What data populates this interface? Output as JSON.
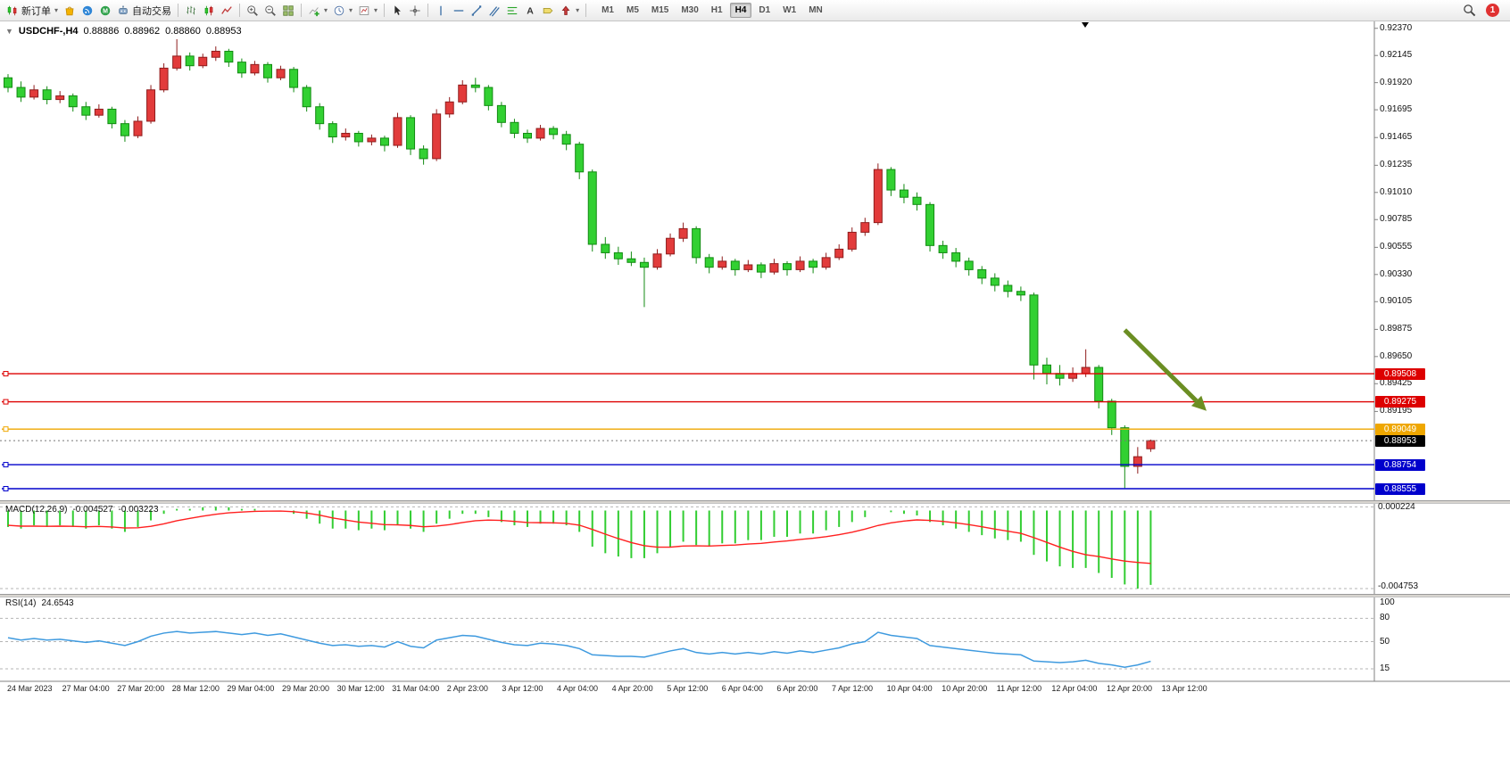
{
  "toolbar": {
    "notification_count": "1",
    "active_timeframe": "H4",
    "timeframes": [
      "M1",
      "M5",
      "M15",
      "M30",
      "H1",
      "H4",
      "D1",
      "W1",
      "MN"
    ],
    "buttons": [
      {
        "name": "new-order-button",
        "label": "新订单",
        "icon": "new-order-icon",
        "caret": true
      },
      {
        "name": "market-button",
        "icon": "market-icon"
      },
      {
        "name": "signals-button",
        "icon": "signals-icon"
      },
      {
        "name": "community-button",
        "icon": "community-icon"
      },
      {
        "name": "autotrade-button",
        "label": "自动交易",
        "icon": "autotrade-icon"
      },
      {
        "sep": true
      },
      {
        "name": "bar-chart-button",
        "icon": "bar-chart-icon"
      },
      {
        "name": "candle-chart-button",
        "icon": "candle-chart-icon"
      },
      {
        "name": "line-chart-button",
        "icon": "line-chart-icon"
      },
      {
        "sep": true
      },
      {
        "name": "zoom-in-button",
        "icon": "zoom-in-icon"
      },
      {
        "name": "zoom-out-button",
        "icon": "zoom-out-icon"
      },
      {
        "name": "tile-windows-button",
        "icon": "tile-windows-icon"
      },
      {
        "sep": true
      },
      {
        "name": "indicators-button",
        "icon": "indicators-icon",
        "caret": true
      },
      {
        "name": "periods-button",
        "icon": "clock-icon",
        "caret": true
      },
      {
        "name": "templates-button",
        "icon": "template-icon",
        "caret": true
      },
      {
        "sep": true
      },
      {
        "name": "cursor-button",
        "icon": "cursor-icon"
      },
      {
        "name": "crosshair-button",
        "icon": "crosshair-icon"
      },
      {
        "sep": true
      },
      {
        "name": "vertical-line-button",
        "icon": "vertical-line-icon"
      },
      {
        "name": "horizontal-line-button",
        "icon": "horizontal-line-icon"
      },
      {
        "name": "trendline-button",
        "icon": "trendline-icon"
      },
      {
        "name": "channel-button",
        "icon": "channel-icon"
      },
      {
        "name": "fibonacci-button",
        "icon": "fibonacci-icon"
      },
      {
        "name": "text-button",
        "icon": "text-icon"
      },
      {
        "name": "label-button",
        "icon": "label-icon"
      },
      {
        "name": "arrows-button",
        "icon": "arrows-icon",
        "caret": true
      },
      {
        "sep": true
      }
    ]
  },
  "quote": {
    "symbol_period": "USDCHF-,H4",
    "open": "0.88886",
    "high": "0.88962",
    "low": "0.88860",
    "close": "0.88953"
  },
  "chart_data": [
    {
      "type": "candlestick",
      "title": "USDCHF-,H4",
      "up_color": "#e23b3b",
      "up_border": "#8f1d1d",
      "down_color": "#32d032",
      "down_border": "#128a12",
      "ylim": [
        0.8843,
        0.9242
      ],
      "y_axis_labels": [
        "0.92370",
        "0.92145",
        "0.91920",
        "0.91695",
        "0.91465",
        "0.91235",
        "0.91010",
        "0.90785",
        "0.90555",
        "0.90330",
        "0.90105",
        "0.89875",
        "0.89650",
        "0.89425",
        "0.89195"
      ],
      "hlines": [
        {
          "label": "0.89508",
          "value": 0.89508,
          "color": "#dd0000"
        },
        {
          "label": "0.89275",
          "value": 0.89275,
          "color": "#dd0000"
        },
        {
          "label": "0.89049",
          "value": 0.89049,
          "color": "#efa700"
        },
        {
          "label": "0.88754",
          "value": 0.88754,
          "color": "#0000cc"
        },
        {
          "label": "0.88555",
          "value": 0.88555,
          "color": "#0000cc"
        }
      ],
      "current_price": {
        "label": "0.88953",
        "value": 0.88953,
        "color": "#000000"
      },
      "arrow": {
        "x1_bar": 86,
        "price1": 0.8987,
        "x2_bar": 92.3,
        "price2": 0.892,
        "color": "#6b8e23"
      },
      "x_labels": [
        "24 Mar 2023",
        "27 Mar 04:00",
        "27 Mar 20:00",
        "28 Mar 12:00",
        "29 Mar 04:00",
        "29 Mar 20:00",
        "30 Mar 12:00",
        "31 Mar 04:00",
        "2 Apr 23:00",
        "3 Apr 12:00",
        "4 Apr 04:00",
        "4 Apr 20:00",
        "5 Apr 12:00",
        "6 Apr 04:00",
        "6 Apr 20:00",
        "7 Apr 12:00",
        "10 Apr 04:00",
        "10 Apr 20:00",
        "11 Apr 12:00",
        "12 Apr 04:00",
        "12 Apr 20:00",
        "13 Apr 12:00"
      ],
      "ohlc": [
        [
          0.9196,
          0.9199,
          0.9184,
          0.9188
        ],
        [
          0.9188,
          0.9193,
          0.9176,
          0.918
        ],
        [
          0.918,
          0.919,
          0.9178,
          0.9186
        ],
        [
          0.9186,
          0.9189,
          0.9174,
          0.9178
        ],
        [
          0.9178,
          0.9185,
          0.9175,
          0.9181
        ],
        [
          0.9181,
          0.9183,
          0.9168,
          0.9172
        ],
        [
          0.9172,
          0.9176,
          0.9161,
          0.9165
        ],
        [
          0.9165,
          0.9174,
          0.9163,
          0.917
        ],
        [
          0.917,
          0.9172,
          0.9154,
          0.9158
        ],
        [
          0.9158,
          0.9161,
          0.9143,
          0.9148
        ],
        [
          0.9148,
          0.9164,
          0.9146,
          0.916
        ],
        [
          0.916,
          0.919,
          0.9158,
          0.9186
        ],
        [
          0.9186,
          0.9208,
          0.9184,
          0.9204
        ],
        [
          0.9204,
          0.9228,
          0.9202,
          0.9214
        ],
        [
          0.9214,
          0.9217,
          0.9202,
          0.9206
        ],
        [
          0.9206,
          0.9216,
          0.9204,
          0.9213
        ],
        [
          0.9213,
          0.9222,
          0.921,
          0.9218
        ],
        [
          0.9218,
          0.922,
          0.9205,
          0.9209
        ],
        [
          0.9209,
          0.9212,
          0.9196,
          0.92
        ],
        [
          0.92,
          0.921,
          0.9198,
          0.9207
        ],
        [
          0.9207,
          0.9209,
          0.9192,
          0.9196
        ],
        [
          0.9196,
          0.9206,
          0.9194,
          0.9203
        ],
        [
          0.9203,
          0.9205,
          0.9184,
          0.9188
        ],
        [
          0.9188,
          0.919,
          0.9168,
          0.9172
        ],
        [
          0.9172,
          0.9175,
          0.9153,
          0.9158
        ],
        [
          0.9158,
          0.916,
          0.9142,
          0.9147
        ],
        [
          0.9147,
          0.9154,
          0.9144,
          0.915
        ],
        [
          0.915,
          0.9152,
          0.9139,
          0.9143
        ],
        [
          0.9143,
          0.9149,
          0.914,
          0.9146
        ],
        [
          0.9146,
          0.9148,
          0.9135,
          0.914
        ],
        [
          0.914,
          0.9167,
          0.9138,
          0.9163
        ],
        [
          0.9163,
          0.9165,
          0.9132,
          0.9137
        ],
        [
          0.9137,
          0.914,
          0.9124,
          0.9129
        ],
        [
          0.9129,
          0.917,
          0.9127,
          0.9166
        ],
        [
          0.9166,
          0.918,
          0.9163,
          0.9176
        ],
        [
          0.9176,
          0.9194,
          0.9174,
          0.919
        ],
        [
          0.919,
          0.9196,
          0.9184,
          0.9188
        ],
        [
          0.9188,
          0.919,
          0.9169,
          0.9173
        ],
        [
          0.9173,
          0.9176,
          0.9155,
          0.9159
        ],
        [
          0.9159,
          0.9162,
          0.9146,
          0.915
        ],
        [
          0.915,
          0.9153,
          0.9142,
          0.9146
        ],
        [
          0.9146,
          0.9157,
          0.9144,
          0.9154
        ],
        [
          0.9154,
          0.9156,
          0.9145,
          0.9149
        ],
        [
          0.9149,
          0.9152,
          0.9136,
          0.9141
        ],
        [
          0.9141,
          0.9143,
          0.9112,
          0.9118
        ],
        [
          0.9118,
          0.912,
          0.9052,
          0.9058
        ],
        [
          0.9058,
          0.9064,
          0.9046,
          0.9051
        ],
        [
          0.9051,
          0.9056,
          0.9041,
          0.9046
        ],
        [
          0.9046,
          0.9052,
          0.904,
          0.9043
        ],
        [
          0.9043,
          0.9047,
          0.9006,
          0.9039
        ],
        [
          0.9039,
          0.9054,
          0.9037,
          0.905
        ],
        [
          0.905,
          0.9067,
          0.9048,
          0.9063
        ],
        [
          0.9063,
          0.9076,
          0.906,
          0.9071
        ],
        [
          0.9071,
          0.9073,
          0.9042,
          0.9047
        ],
        [
          0.9047,
          0.905,
          0.9034,
          0.9039
        ],
        [
          0.9039,
          0.9048,
          0.9037,
          0.9044
        ],
        [
          0.9044,
          0.9046,
          0.9032,
          0.9037
        ],
        [
          0.9037,
          0.9045,
          0.9035,
          0.9041
        ],
        [
          0.9041,
          0.9043,
          0.903,
          0.9035
        ],
        [
          0.9035,
          0.9046,
          0.9033,
          0.9042
        ],
        [
          0.9042,
          0.9044,
          0.9032,
          0.9037
        ],
        [
          0.9037,
          0.9048,
          0.9035,
          0.9044
        ],
        [
          0.9044,
          0.9046,
          0.9034,
          0.9039
        ],
        [
          0.9039,
          0.9051,
          0.9037,
          0.9047
        ],
        [
          0.9047,
          0.9058,
          0.9045,
          0.9054
        ],
        [
          0.9054,
          0.9072,
          0.9052,
          0.9068
        ],
        [
          0.9068,
          0.908,
          0.9065,
          0.9076
        ],
        [
          0.9076,
          0.9125,
          0.9074,
          0.912
        ],
        [
          0.912,
          0.9122,
          0.9098,
          0.9103
        ],
        [
          0.9103,
          0.9108,
          0.9092,
          0.9097
        ],
        [
          0.9097,
          0.9101,
          0.9086,
          0.9091
        ],
        [
          0.9091,
          0.9093,
          0.9052,
          0.9057
        ],
        [
          0.9057,
          0.9061,
          0.9046,
          0.9051
        ],
        [
          0.9051,
          0.9055,
          0.9039,
          0.9044
        ],
        [
          0.9044,
          0.9047,
          0.9032,
          0.9037
        ],
        [
          0.9037,
          0.904,
          0.9025,
          0.903
        ],
        [
          0.903,
          0.9034,
          0.9019,
          0.9024
        ],
        [
          0.9024,
          0.9028,
          0.9014,
          0.9019
        ],
        [
          0.9019,
          0.9023,
          0.9011,
          0.9016
        ],
        [
          0.9016,
          0.9018,
          0.8946,
          0.8958
        ],
        [
          0.8958,
          0.8964,
          0.8942,
          0.8951
        ],
        [
          0.8951,
          0.8958,
          0.8941,
          0.8947
        ],
        [
          0.8947,
          0.8956,
          0.8944,
          0.8951
        ],
        [
          0.8951,
          0.8971,
          0.8948,
          0.8956
        ],
        [
          0.8956,
          0.8958,
          0.8922,
          0.8928
        ],
        [
          0.8928,
          0.893,
          0.89,
          0.8906
        ],
        [
          0.8906,
          0.8908,
          0.8856,
          0.8874
        ],
        [
          0.8874,
          0.889,
          0.8868,
          0.8882
        ],
        [
          0.88886,
          0.88962,
          0.8886,
          0.88953
        ]
      ]
    },
    {
      "type": "bar",
      "name": "MACD(12,26,9)",
      "value_main": "-0.004527",
      "value_signal": "-0.003223",
      "scale": [
        "0.000224",
        "-0.004753"
      ],
      "ylim": [
        -0.004753,
        0.000224
      ],
      "bar_color": "#32cd32",
      "signal_color": "#ff2020",
      "values": [
        -0.001,
        -0.0011,
        -0.0009,
        -0.001,
        -0.0009,
        -0.001,
        -0.0011,
        -0.0009,
        -0.0011,
        -0.0013,
        -0.001,
        -0.0006,
        -0.0002,
        0.0001,
        0.0001,
        0.0002,
        0.00022,
        0.0002,
        0.0001,
        0.0001,
        0,
        0,
        -0.0002,
        -0.0005,
        -0.0008,
        -0.0011,
        -0.0011,
        -0.0012,
        -0.0011,
        -0.0012,
        -0.0009,
        -0.0011,
        -0.0013,
        -0.0008,
        -0.0005,
        -0.0002,
        -0.0002,
        -0.0004,
        -0.0007,
        -0.0009,
        -0.001,
        -0.0008,
        -0.0008,
        -0.0009,
        -0.0013,
        -0.0022,
        -0.0026,
        -0.0028,
        -0.0029,
        -0.0029,
        -0.0026,
        -0.0022,
        -0.0019,
        -0.0021,
        -0.0022,
        -0.002,
        -0.002,
        -0.0018,
        -0.0018,
        -0.0016,
        -0.0016,
        -0.0014,
        -0.0014,
        -0.0012,
        -0.001,
        -0.0007,
        -0.0004,
        0,
        -0.0001,
        -0.0002,
        -0.0003,
        -0.0007,
        -0.0009,
        -0.0011,
        -0.0013,
        -0.0015,
        -0.0017,
        -0.0018,
        -0.0019,
        -0.0027,
        -0.0031,
        -0.0034,
        -0.0035,
        -0.0035,
        -0.0038,
        -0.0041,
        -0.0045,
        -0.00475,
        -0.004527
      ],
      "signal": [
        -0.0009,
        -0.00095,
        -0.00095,
        -0.00096,
        -0.00095,
        -0.00096,
        -0.00099,
        -0.00097,
        -0.001,
        -0.00106,
        -0.00105,
        -0.00096,
        -0.00081,
        -0.00062,
        -0.00048,
        -0.00034,
        -0.00023,
        -0.00014,
        -9e-05,
        -5e-05,
        -4e-05,
        -3e-05,
        -7e-05,
        -0.00015,
        -0.00028,
        -0.00045,
        -0.00058,
        -0.0007,
        -0.00078,
        -0.00086,
        -0.00087,
        -0.00091,
        -0.00099,
        -0.00095,
        -0.00086,
        -0.00073,
        -0.00062,
        -0.00058,
        -0.0006,
        -0.00066,
        -0.00073,
        -0.00074,
        -0.00075,
        -0.00078,
        -0.00089,
        -0.00115,
        -0.00144,
        -0.00171,
        -0.00195,
        -0.00214,
        -0.00223,
        -0.00223,
        -0.00216,
        -0.00215,
        -0.00216,
        -0.00213,
        -0.0021,
        -0.00204,
        -0.002,
        -0.00192,
        -0.00185,
        -0.00176,
        -0.00169,
        -0.00159,
        -0.00147,
        -0.00132,
        -0.00113,
        -0.00091,
        -0.00075,
        -0.00064,
        -0.00057,
        -0.0006,
        -0.00066,
        -0.00075,
        -0.00086,
        -0.00099,
        -0.00113,
        -0.00126,
        -0.00139,
        -0.00165,
        -0.00194,
        -0.00223,
        -0.00249,
        -0.00269,
        -0.0028,
        -0.00295,
        -0.00308,
        -0.00316,
        -0.003223
      ]
    },
    {
      "type": "line",
      "name": "RSI(14)",
      "value": "24.6543",
      "levels": [
        "100",
        "80",
        "50",
        "15"
      ],
      "level_values": [
        100,
        80,
        50,
        15
      ],
      "line_color": "#3e9adf",
      "ylim": [
        0,
        100
      ],
      "values": [
        55,
        52,
        54,
        52,
        53,
        51,
        49,
        51,
        48,
        45,
        50,
        57,
        61,
        63,
        61,
        62,
        63,
        61,
        59,
        61,
        58,
        60,
        56,
        52,
        48,
        45,
        46,
        44,
        45,
        43,
        50,
        44,
        42,
        52,
        55,
        58,
        57,
        53,
        49,
        46,
        45,
        48,
        47,
        45,
        41,
        33,
        32,
        31,
        31,
        30,
        34,
        38,
        41,
        36,
        34,
        36,
        34,
        36,
        34,
        37,
        35,
        38,
        36,
        39,
        42,
        47,
        50,
        62,
        58,
        56,
        54,
        45,
        43,
        41,
        39,
        37,
        35,
        34,
        33,
        25,
        24,
        23,
        24,
        26,
        22,
        20,
        17,
        20,
        24.6543
      ]
    }
  ]
}
